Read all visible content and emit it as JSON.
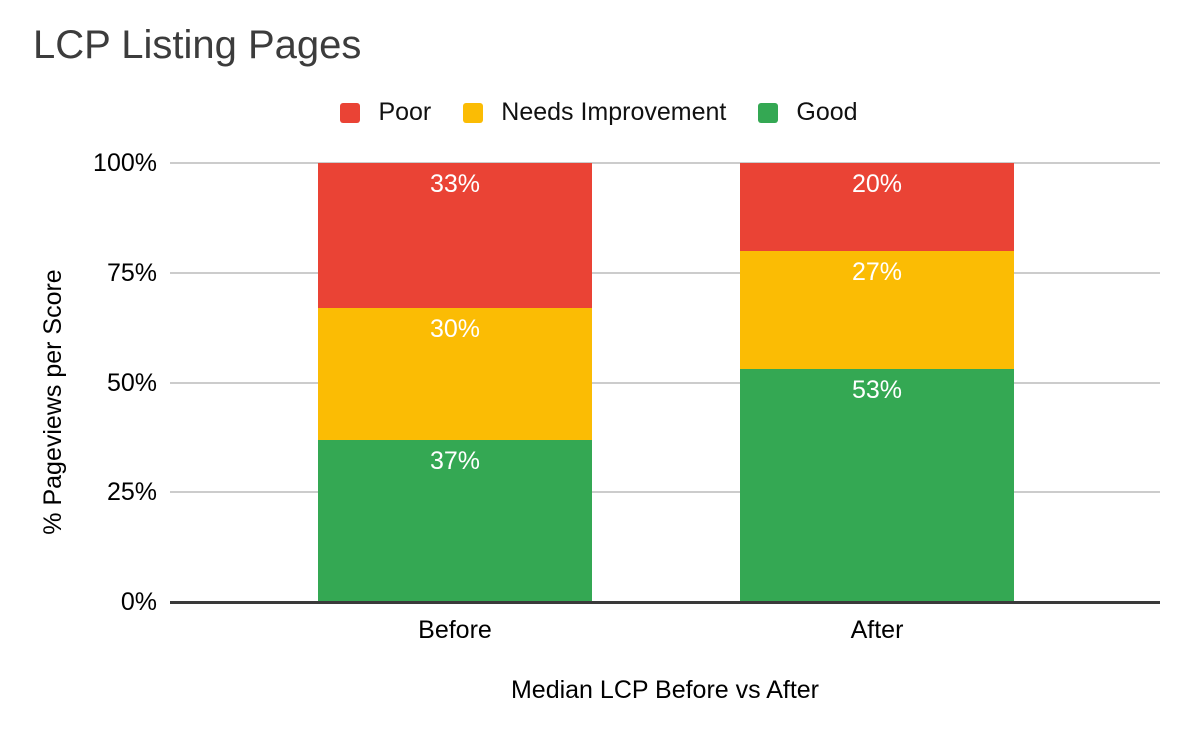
{
  "page": {
    "background": "#ffffff"
  },
  "header": {
    "title": "LCP Listing Pages"
  },
  "legend": {
    "items": [
      {
        "label": "Poor",
        "color": "#EA4335"
      },
      {
        "label": "Needs Improvement",
        "color": "#FBBC04"
      },
      {
        "label": "Good",
        "color": "#34A853"
      }
    ]
  },
  "chart_data": {
    "type": "bar",
    "stacked": true,
    "orientation": "vertical",
    "title": "LCP Listing Pages",
    "xlabel": "Median LCP Before vs After",
    "ylabel": "% Pageviews per Score",
    "categories": [
      "Before",
      "After"
    ],
    "series": [
      {
        "name": "Good",
        "color": "#34A853",
        "values": [
          37,
          53
        ]
      },
      {
        "name": "Needs Improvement",
        "color": "#FBBC04",
        "values": [
          30,
          27
        ]
      },
      {
        "name": "Poor",
        "color": "#EA4335",
        "values": [
          33,
          20
        ]
      }
    ],
    "stack_order_bottom_to_top": [
      "Good",
      "Needs Improvement",
      "Poor"
    ],
    "data_label_suffix": "%",
    "yticks": [
      "0%",
      "25%",
      "50%",
      "75%",
      "100%"
    ],
    "ylim": [
      0,
      100
    ],
    "grid": true,
    "legend_position": "top",
    "colors": {
      "gridline": "#cccccc",
      "axis_line": "#3a3a3a",
      "data_label": "#ffffff",
      "title": "#3c3c3c",
      "axis_text": "#000000"
    }
  }
}
